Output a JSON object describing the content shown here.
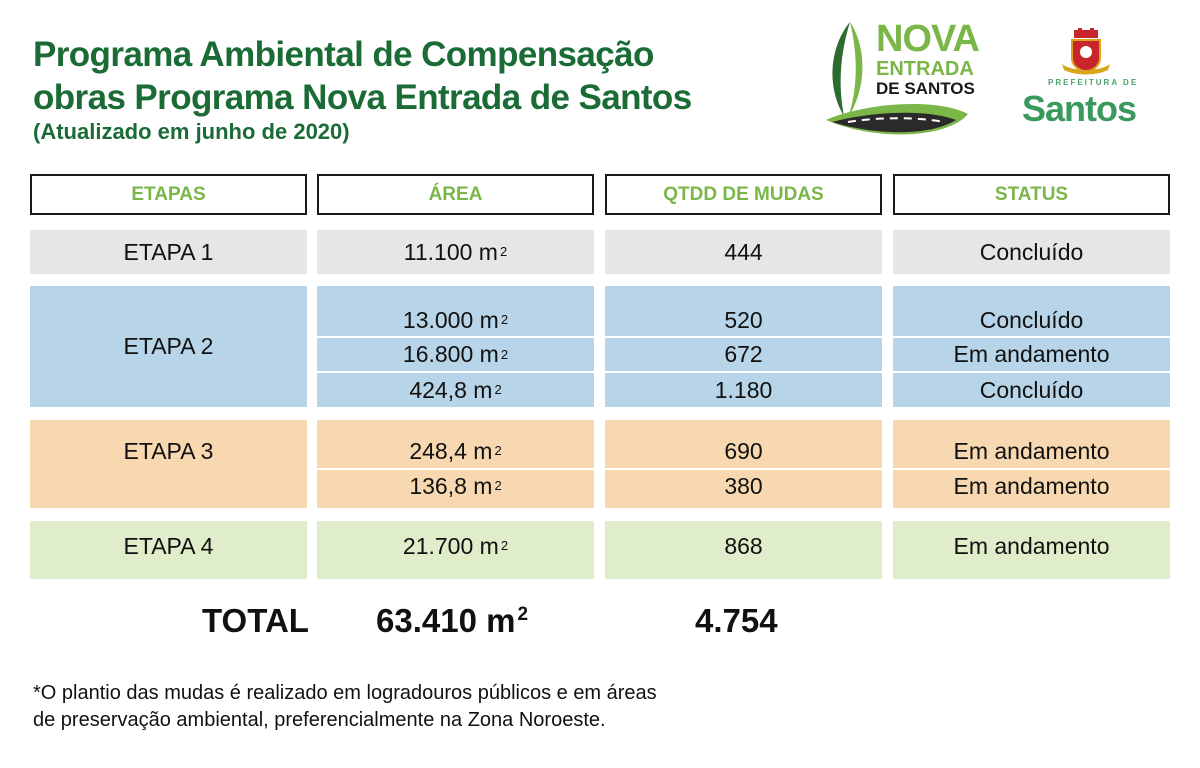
{
  "header": {
    "title_line1": "Programa Ambiental de Compensação",
    "title_line2": "obras Programa Nova Entrada de Santos",
    "subtitle": "(Atualizado em junho de 2020)"
  },
  "logos": {
    "nova_entrada": {
      "line1": "NOVA",
      "line2": "ENTRADA",
      "line3": "DE SANTOS"
    },
    "prefeitura": {
      "small": "PREFEITURA DE",
      "name": "Santos"
    }
  },
  "table": {
    "headers": [
      "ETAPAS",
      "ÁREA",
      "QTDD DE MUDAS",
      "STATUS"
    ],
    "etapas": [
      {
        "label": "ETAPA 1",
        "rows": [
          {
            "area": "11.100 m",
            "mudas": "444",
            "status": "Concluído"
          }
        ]
      },
      {
        "label": "ETAPA 2",
        "rows": [
          {
            "area": "13.000 m",
            "mudas": "520",
            "status": "Concluído"
          },
          {
            "area": "16.800 m",
            "mudas": "672",
            "status": "Em andamento"
          },
          {
            "area": "424,8 m",
            "mudas": "1.180",
            "status": "Concluído"
          }
        ]
      },
      {
        "label": "ETAPA 3",
        "rows": [
          {
            "area": "248,4 m",
            "mudas": "690",
            "status": "Em andamento"
          },
          {
            "area": "136,8 m",
            "mudas": "380",
            "status": "Em andamento"
          }
        ]
      },
      {
        "label": "ETAPA 4",
        "rows": [
          {
            "area": "21.700 m",
            "mudas": "868",
            "status": "Em andamento"
          }
        ]
      }
    ],
    "area_exponent": "2"
  },
  "total": {
    "label": "TOTAL",
    "area": "63.410 m",
    "exponent": "2",
    "mudas": "4.754"
  },
  "footnote": {
    "line1": "*O plantio das mudas é realizado em logradouros públicos e em áreas",
    "line2": "de preservação ambiental, preferencialmente na Zona Noroeste."
  },
  "colors": {
    "title_green": "#1a6b35",
    "header_green": "#7ab648",
    "etapa1": "#e6e6e6",
    "etapa2": "#b7d4e8",
    "etapa3": "#f8d8b0",
    "etapa4": "#dfedca"
  }
}
